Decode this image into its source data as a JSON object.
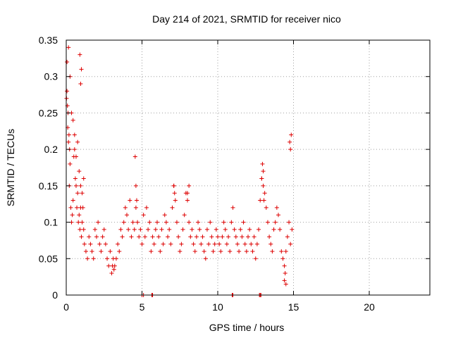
{
  "chart_data": {
    "type": "scatter",
    "title": "Day 214 of 2021, SRMTID for receiver nico",
    "xlabel": "GPS time / hours",
    "ylabel": "SRMTID / TECUs",
    "xlim": [
      0,
      24
    ],
    "ylim": [
      0,
      0.35
    ],
    "x_ticks": [
      0,
      5,
      10,
      15,
      20
    ],
    "y_ticks": [
      0,
      0.05,
      0.1,
      0.15,
      0.2,
      0.25,
      0.3,
      0.35
    ],
    "x_tick_labels": [
      "0",
      "5",
      "10",
      "15",
      "20"
    ],
    "y_tick_labels": [
      "0",
      "0.05",
      "0.1",
      "0.15",
      "0.2",
      "0.25",
      "0.3",
      "0.35"
    ],
    "grid": true,
    "legend": "none",
    "marker": "plus",
    "color": "#dd0000",
    "series": [
      {
        "x": [
          0.02,
          0.05,
          0.08,
          0.1,
          0.12,
          0.15,
          0.18,
          0.2,
          0.22,
          0.25,
          0.3,
          0.35,
          0.4,
          0.45,
          0.5,
          0.55,
          0.6,
          0.65,
          0.7,
          0.75,
          0.8,
          0.85,
          0.9,
          0.95,
          1.0,
          1.05,
          1.1,
          1.15,
          1.2,
          1.3,
          1.4,
          1.5,
          1.6,
          1.7,
          1.8,
          1.9,
          2.0,
          2.1,
          2.2,
          2.3,
          2.4,
          2.5,
          2.6,
          2.7,
          2.8,
          2.9,
          3.0,
          3.05,
          3.1,
          3.15,
          3.2,
          3.3,
          3.4,
          3.5,
          3.6,
          3.7,
          3.8,
          3.9,
          4.0,
          4.1,
          4.2,
          4.3,
          4.4,
          4.5,
          4.6,
          4.7,
          4.8,
          4.9,
          5.0,
          5.1,
          5.2,
          5.3,
          5.4,
          5.5,
          5.6,
          5.7,
          5.8,
          5.9,
          6.0,
          6.1,
          6.2,
          6.3,
          6.4,
          6.5,
          6.6,
          6.7,
          6.8,
          6.9,
          7.0,
          7.1,
          7.2,
          7.3,
          7.4,
          7.5,
          7.6,
          7.7,
          7.8,
          7.9,
          8.0,
          8.1,
          8.2,
          8.3,
          8.4,
          8.5,
          8.6,
          8.7,
          8.8,
          8.9,
          9.0,
          9.1,
          9.2,
          9.3,
          9.4,
          9.5,
          9.6,
          9.7,
          9.8,
          9.9,
          10.0,
          10.1,
          10.2,
          10.3,
          10.4,
          10.5,
          10.6,
          10.7,
          10.8,
          10.9,
          11.0,
          11.1,
          11.2,
          11.3,
          11.4,
          11.5,
          11.6,
          11.7,
          11.8,
          11.9,
          12.0,
          12.1,
          12.2,
          12.3,
          12.4,
          12.5,
          12.6,
          12.7,
          12.8,
          12.9,
          13.0,
          13.1,
          13.2,
          13.3,
          13.4,
          13.5,
          13.6,
          13.7,
          13.8,
          13.9,
          14.0,
          14.1,
          14.2,
          14.3,
          14.4,
          14.5,
          14.6,
          14.7,
          14.8,
          14.9,
          0.05,
          0.15,
          0.25,
          0.35,
          0.45,
          0.55,
          0.65,
          0.75,
          0.85,
          0.95,
          1.05,
          1.15,
          0.9,
          0.95,
          1.0,
          4.55,
          4.6,
          4.65,
          7.1,
          7.15,
          8.0,
          8.1,
          12.9,
          12.95,
          13.0,
          13.05,
          14.75,
          14.8,
          14.85,
          5.0,
          5.1,
          5.65,
          5.7,
          10.95,
          11.0,
          12.75,
          12.8,
          12.85,
          14.4,
          14.45,
          14.5
        ],
        "y": [
          0.27,
          0.28,
          0.26,
          0.23,
          0.25,
          0.21,
          0.22,
          0.15,
          0.2,
          0.18,
          0.12,
          0.1,
          0.11,
          0.13,
          0.19,
          0.2,
          0.16,
          0.15,
          0.12,
          0.14,
          0.1,
          0.11,
          0.09,
          0.12,
          0.08,
          0.1,
          0.12,
          0.09,
          0.07,
          0.06,
          0.05,
          0.08,
          0.07,
          0.06,
          0.05,
          0.09,
          0.08,
          0.1,
          0.07,
          0.06,
          0.08,
          0.09,
          0.07,
          0.05,
          0.04,
          0.06,
          0.03,
          0.04,
          0.05,
          0.035,
          0.04,
          0.05,
          0.07,
          0.06,
          0.09,
          0.08,
          0.1,
          0.12,
          0.11,
          0.09,
          0.13,
          0.08,
          0.1,
          0.09,
          0.12,
          0.1,
          0.08,
          0.09,
          0.07,
          0.11,
          0.08,
          0.12,
          0.09,
          0.1,
          0.06,
          0.08,
          0.07,
          0.09,
          0.1,
          0.08,
          0.06,
          0.09,
          0.07,
          0.11,
          0.1,
          0.08,
          0.09,
          0.07,
          0.12,
          0.15,
          0.13,
          0.1,
          0.08,
          0.06,
          0.07,
          0.09,
          0.11,
          0.14,
          0.13,
          0.1,
          0.08,
          0.09,
          0.07,
          0.06,
          0.08,
          0.1,
          0.09,
          0.07,
          0.08,
          0.06,
          0.05,
          0.09,
          0.07,
          0.1,
          0.08,
          0.06,
          0.07,
          0.09,
          0.08,
          0.07,
          0.06,
          0.08,
          0.1,
          0.09,
          0.07,
          0.08,
          0.06,
          0.1,
          0.12,
          0.09,
          0.08,
          0.07,
          0.06,
          0.09,
          0.08,
          0.1,
          0.07,
          0.06,
          0.08,
          0.09,
          0.07,
          0.06,
          0.08,
          0.05,
          0.07,
          0.09,
          0.13,
          0.16,
          0.17,
          0.14,
          0.12,
          0.1,
          0.08,
          0.07,
          0.06,
          0.09,
          0.1,
          0.12,
          0.11,
          0.09,
          0.06,
          0.05,
          0.04,
          0.06,
          0.08,
          0.1,
          0.07,
          0.09,
          0.32,
          0.34,
          0.3,
          0.25,
          0.24,
          0.22,
          0.19,
          0.21,
          0.17,
          0.15,
          0.14,
          0.16,
          0.33,
          0.29,
          0.31,
          0.19,
          0.15,
          0.13,
          0.15,
          0.14,
          0.14,
          0.15,
          0.16,
          0.18,
          0.15,
          0.13,
          0.21,
          0.2,
          0.22,
          0.0,
          0.0,
          0.0,
          0.0,
          0.0,
          0.0,
          0.0,
          0.0,
          0.0,
          0.02,
          0.03,
          0.015
        ]
      }
    ]
  }
}
